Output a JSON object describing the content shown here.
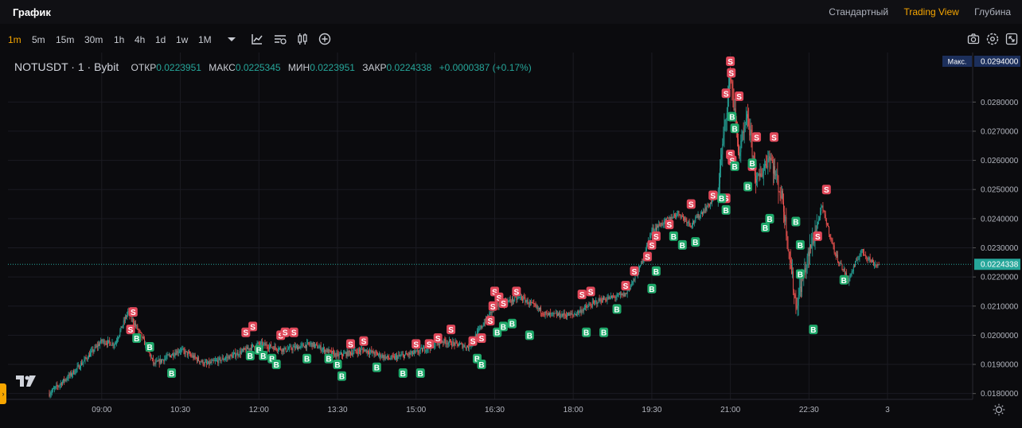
{
  "header": {
    "title": "График",
    "views": [
      "Стандартный",
      "Trading View",
      "Глубина"
    ],
    "active_view": "Trading View"
  },
  "toolbar": {
    "timeframes": [
      "1m",
      "5m",
      "15m",
      "30m",
      "1h",
      "4h",
      "1d",
      "1w",
      "1M"
    ],
    "active_timeframe": "1m",
    "icons": [
      "dropdown-arrow-icon",
      "indicators-icon",
      "chart-settings-icon",
      "candle-type-icon",
      "add-icon",
      "camera-icon",
      "gear-icon",
      "fullscreen-icon"
    ]
  },
  "legend": {
    "symbol": "NOTUSDT · 1 · Bybit",
    "open_label": "ОТКР",
    "open": "0.0223951",
    "high_label": "МАКС",
    "high": "0.0225345",
    "low_label": "МИН",
    "low": "0.0223951",
    "close_label": "ЗАКР",
    "close": "0.0224338",
    "change": "+0.0000387 (+0.17%)"
  },
  "price_axis": {
    "max_badge_label": "Макс.",
    "max_badge_value": "0.0294000",
    "last_price": "0.0224338"
  },
  "colors": {
    "up": "#26a69a",
    "down": "#ef5350",
    "accent": "#f7a600",
    "buy_marker": "#1fa86a",
    "sell_marker": "#e0485a"
  },
  "chart_data": {
    "type": "candlestick",
    "symbol": "NOTUSDT",
    "interval": "1m",
    "exchange": "Bybit",
    "ylim": [
      0.0178,
      0.0297
    ],
    "yticks": [
      "0.0180000",
      "0.0190000",
      "0.0200000",
      "0.0210000",
      "0.0220000",
      "0.0230000",
      "0.0240000",
      "0.0250000",
      "0.0260000",
      "0.0270000",
      "0.0280000"
    ],
    "xticks": [
      "09:00",
      "10:30",
      "12:00",
      "13:30",
      "15:00",
      "16:30",
      "18:00",
      "19:30",
      "21:00",
      "22:30",
      "3"
    ],
    "price_path": [
      {
        "t": "08:00",
        "p": 0.018
      },
      {
        "t": "08:30",
        "p": 0.0188
      },
      {
        "t": "09:00",
        "p": 0.0198
      },
      {
        "t": "09:15",
        "p": 0.0197
      },
      {
        "t": "09:30",
        "p": 0.0208
      },
      {
        "t": "09:45",
        "p": 0.02
      },
      {
        "t": "10:00",
        "p": 0.019
      },
      {
        "t": "10:30",
        "p": 0.0195
      },
      {
        "t": "11:00",
        "p": 0.019
      },
      {
        "t": "11:30",
        "p": 0.0193
      },
      {
        "t": "12:00",
        "p": 0.0197
      },
      {
        "t": "12:30",
        "p": 0.0195
      },
      {
        "t": "13:00",
        "p": 0.0197
      },
      {
        "t": "13:30",
        "p": 0.0193
      },
      {
        "t": "14:00",
        "p": 0.0195
      },
      {
        "t": "14:30",
        "p": 0.0192
      },
      {
        "t": "15:00",
        "p": 0.0194
      },
      {
        "t": "15:30",
        "p": 0.0198
      },
      {
        "t": "16:00",
        "p": 0.0196
      },
      {
        "t": "16:30",
        "p": 0.021
      },
      {
        "t": "17:00",
        "p": 0.0213
      },
      {
        "t": "17:30",
        "p": 0.0207
      },
      {
        "t": "18:00",
        "p": 0.0207
      },
      {
        "t": "18:30",
        "p": 0.0212
      },
      {
        "t": "19:00",
        "p": 0.0214
      },
      {
        "t": "19:15",
        "p": 0.0222
      },
      {
        "t": "19:30",
        "p": 0.0236
      },
      {
        "t": "20:00",
        "p": 0.0242
      },
      {
        "t": "20:15",
        "p": 0.0238
      },
      {
        "t": "20:45",
        "p": 0.0248
      },
      {
        "t": "21:00",
        "p": 0.029
      },
      {
        "t": "21:10",
        "p": 0.0262
      },
      {
        "t": "21:20",
        "p": 0.0275
      },
      {
        "t": "21:30",
        "p": 0.0252
      },
      {
        "t": "21:45",
        "p": 0.0262
      },
      {
        "t": "22:00",
        "p": 0.0246
      },
      {
        "t": "22:15",
        "p": 0.021
      },
      {
        "t": "22:30",
        "p": 0.0228
      },
      {
        "t": "22:45",
        "p": 0.0244
      },
      {
        "t": "23:00",
        "p": 0.0228
      },
      {
        "t": "23:15",
        "p": 0.0219
      },
      {
        "t": "23:30",
        "p": 0.0229
      },
      {
        "t": "23:45",
        "p": 0.0224338
      }
    ]
  }
}
